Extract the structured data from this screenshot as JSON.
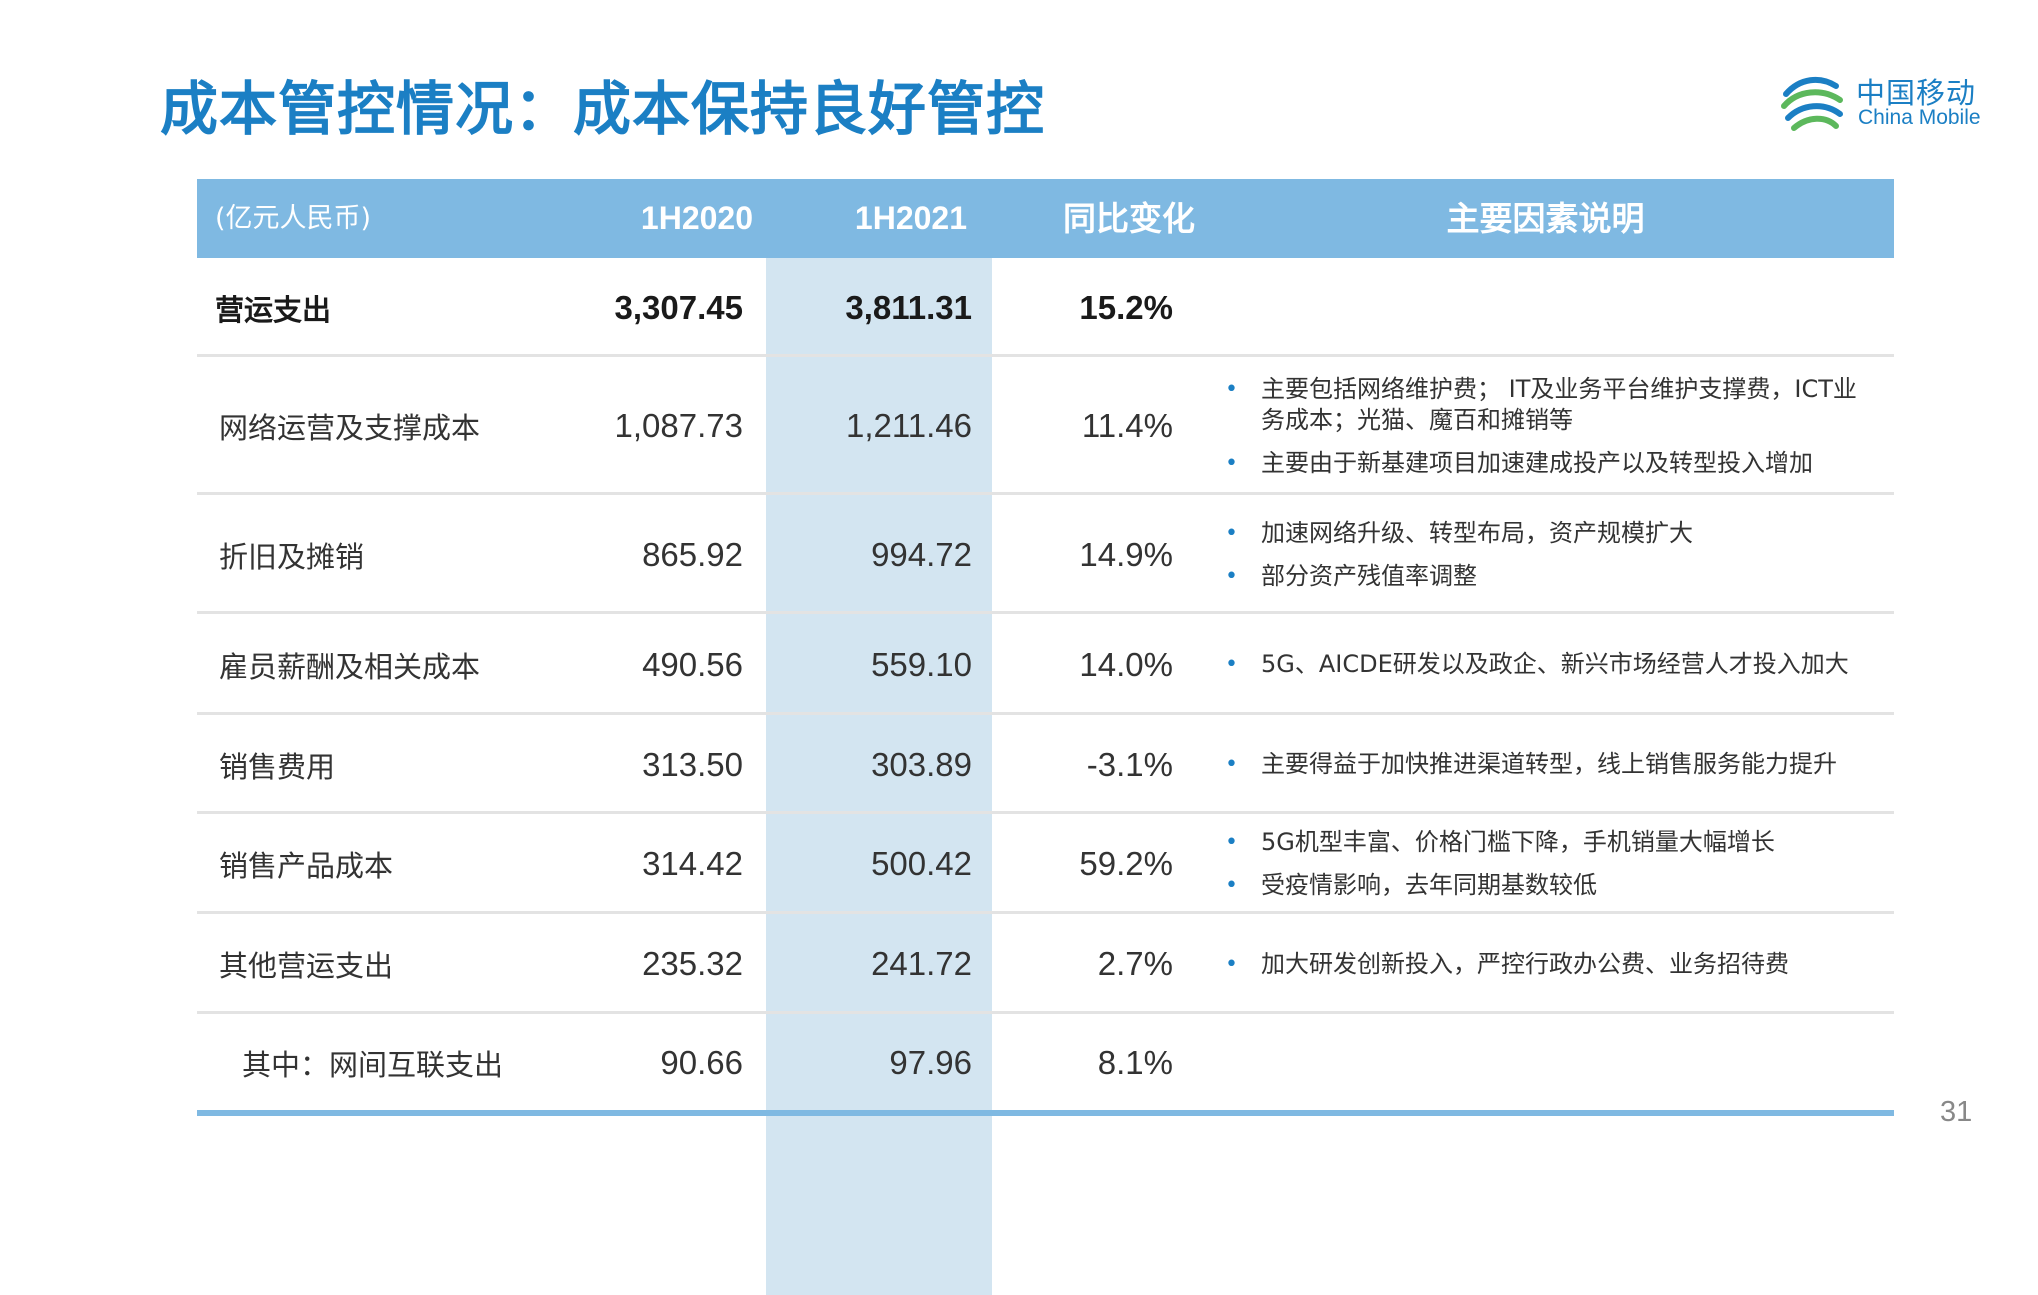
{
  "title": "成本管控情况：成本保持良好管控",
  "logo": {
    "cn": "中国移动",
    "en": "China Mobile"
  },
  "table": {
    "headers": {
      "label": "(亿元人民币)",
      "y2020": "1H2020",
      "y2021": "1H2021",
      "change": "同比变化",
      "notes": "主要因素说明"
    },
    "rows": [
      {
        "label": "营运支出",
        "y2020": "3,307.45",
        "y2021": "3,811.31",
        "change": "15.2%",
        "notes": []
      },
      {
        "label": "网络运营及支撑成本",
        "y2020": "1,087.73",
        "y2021": "1,211.46",
        "change": "11.4%",
        "notes": [
          "主要包括网络维护费； IT及业务平台维护支撑费，ICT业务成本；光猫、魔百和摊销等",
          "主要由于新基建项目加速建成投产以及转型投入增加"
        ]
      },
      {
        "label": "折旧及摊销",
        "y2020": "865.92",
        "y2021": "994.72",
        "change": "14.9%",
        "notes": [
          "加速网络升级、转型布局，资产规模扩大",
          "部分资产残值率调整"
        ]
      },
      {
        "label": "雇员薪酬及相关成本",
        "y2020": "490.56",
        "y2021": "559.10",
        "change": "14.0%",
        "notes": [
          "5G、AICDE研发以及政企、新兴市场经营人才投入加大"
        ]
      },
      {
        "label": "销售费用",
        "y2020": "313.50",
        "y2021": "303.89",
        "change": "-3.1%",
        "notes": [
          "主要得益于加快推进渠道转型，线上销售服务能力提升"
        ]
      },
      {
        "label": "销售产品成本",
        "y2020": "314.42",
        "y2021": "500.42",
        "change": "59.2%",
        "notes": [
          "5G机型丰富、价格门槛下降，手机销量大幅增长",
          "受疫情影响，去年同期基数较低"
        ]
      },
      {
        "label": "其他营运支出",
        "y2020": "235.32",
        "y2021": "241.72",
        "change": "2.7%",
        "notes": [
          "加大研发创新投入，严控行政办公费、业务招待费"
        ]
      },
      {
        "label": "其中：网间互联支出",
        "y2020": "90.66",
        "y2021": "97.96",
        "change": "8.1%",
        "notes": []
      }
    ]
  },
  "page_number": "31",
  "colors": {
    "title": "#1b7fc4",
    "header_bg": "#7fb9e2",
    "highlight_col": "#d3e5f1",
    "bullet": "#1b7fc4"
  }
}
